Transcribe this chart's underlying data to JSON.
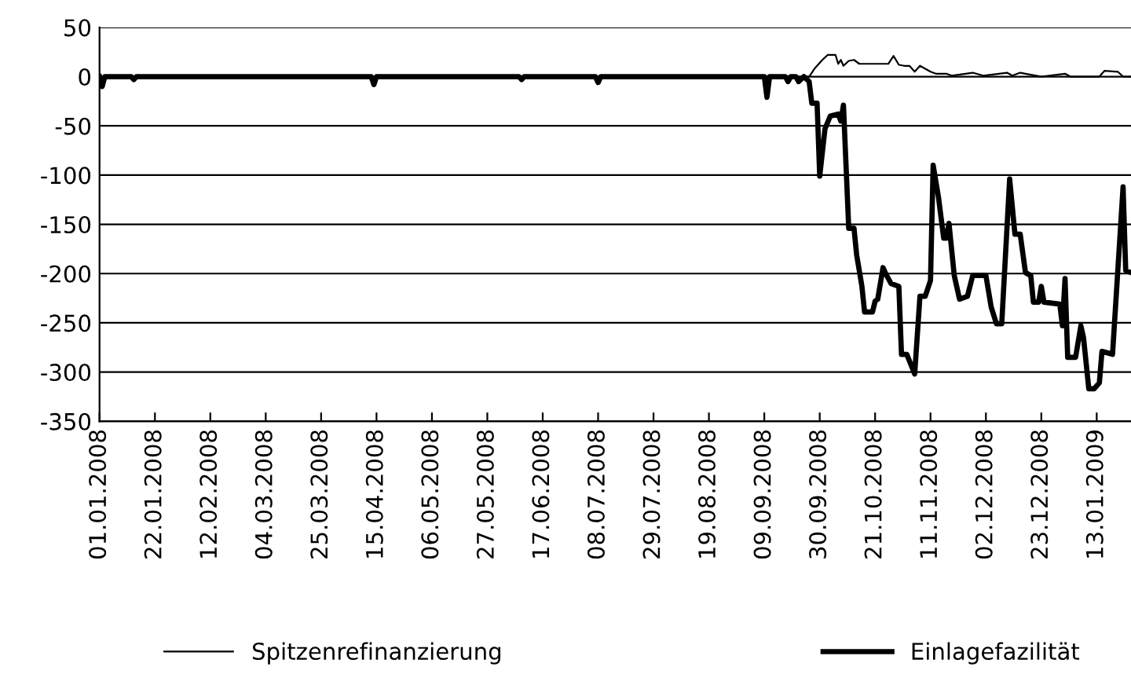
{
  "chart_data": {
    "type": "line",
    "ylim": [
      -350,
      50
    ],
    "yticks": [
      -350,
      -300,
      -250,
      -200,
      -150,
      -100,
      -50,
      0,
      50
    ],
    "xlim": [
      "2008-01-01",
      "2009-01-26"
    ],
    "xticks": [
      {
        "value": "2008-01-01",
        "label": "01.01.2008"
      },
      {
        "value": "2008-01-22",
        "label": "22.01.2008"
      },
      {
        "value": "2008-02-12",
        "label": "12.02.2008"
      },
      {
        "value": "2008-03-04",
        "label": "04.03.2008"
      },
      {
        "value": "2008-03-25",
        "label": "25.03.2008"
      },
      {
        "value": "2008-04-15",
        "label": "15.04.2008"
      },
      {
        "value": "2008-05-06",
        "label": "06.05.2008"
      },
      {
        "value": "2008-05-27",
        "label": "27.05.2008"
      },
      {
        "value": "2008-06-17",
        "label": "17.06.2008"
      },
      {
        "value": "2008-07-08",
        "label": "08.07.2008"
      },
      {
        "value": "2008-07-29",
        "label": "29.07.2008"
      },
      {
        "value": "2008-08-19",
        "label": "19.08.2008"
      },
      {
        "value": "2008-09-09",
        "label": "09.09.2008"
      },
      {
        "value": "2008-09-30",
        "label": "30.09.2008"
      },
      {
        "value": "2008-10-21",
        "label": "21.10.2008"
      },
      {
        "value": "2008-11-11",
        "label": "11.11.2008"
      },
      {
        "value": "2008-12-02",
        "label": "02.12.2008"
      },
      {
        "value": "2008-12-23",
        "label": "23.12.2008"
      },
      {
        "value": "2009-01-13",
        "label": "13.01.2009"
      }
    ],
    "grid": "y",
    "legend": "bottom",
    "line_style": "solid",
    "marker": "none",
    "series": [
      {
        "name": "Spitzenrefinanzierung",
        "color": "#000000",
        "x": [
          "2008-01-01",
          "2008-09-26",
          "2008-09-28",
          "2008-10-01",
          "2008-10-03",
          "2008-10-06",
          "2008-10-07",
          "2008-10-08",
          "2008-10-09",
          "2008-10-11",
          "2008-10-13",
          "2008-10-15",
          "2008-10-26",
          "2008-10-28",
          "2008-10-30",
          "2008-11-01",
          "2008-11-03",
          "2008-11-05",
          "2008-11-07",
          "2008-11-09",
          "2008-11-11",
          "2008-11-13",
          "2008-11-17",
          "2008-11-19",
          "2008-11-27",
          "2008-12-01",
          "2008-12-10",
          "2008-12-12",
          "2008-12-15",
          "2008-12-19",
          "2008-12-23",
          "2009-01-01",
          "2009-01-03",
          "2009-01-14",
          "2009-01-16",
          "2009-01-21",
          "2009-01-23",
          "2009-01-26"
        ],
        "values": [
          0,
          0,
          8,
          17,
          22,
          22,
          13,
          17,
          11,
          16,
          17,
          13,
          13,
          21,
          12,
          11,
          11,
          5,
          11,
          8,
          5,
          3,
          3,
          1,
          4,
          1,
          4,
          1,
          4,
          2,
          0,
          3,
          0,
          0,
          6,
          5,
          0,
          0
        ]
      },
      {
        "name": "Einlagefazilität",
        "color": "#000000",
        "x": [
          "2008-01-01",
          "2008-01-02",
          "2008-01-03",
          "2008-01-13",
          "2008-01-14",
          "2008-01-15",
          "2008-04-13",
          "2008-04-14",
          "2008-04-15",
          "2008-06-08",
          "2008-06-09",
          "2008-06-10",
          "2008-07-07",
          "2008-07-08",
          "2008-07-09",
          "2008-09-09",
          "2008-09-10",
          "2008-09-11",
          "2008-09-17",
          "2008-09-18",
          "2008-09-19",
          "2008-09-21",
          "2008-09-22",
          "2008-09-24",
          "2008-09-26",
          "2008-09-27",
          "2008-09-29",
          "2008-09-30",
          "2008-10-02",
          "2008-10-04",
          "2008-10-07",
          "2008-10-08",
          "2008-10-09",
          "2008-10-11",
          "2008-10-13",
          "2008-10-14",
          "2008-10-16",
          "2008-10-17",
          "2008-10-20",
          "2008-10-21",
          "2008-10-22",
          "2008-10-24",
          "2008-10-25",
          "2008-10-27",
          "2008-10-30",
          "2008-10-31",
          "2008-11-02",
          "2008-11-05",
          "2008-11-07",
          "2008-11-09",
          "2008-11-11",
          "2008-11-12",
          "2008-11-14",
          "2008-11-16",
          "2008-11-17",
          "2008-11-18",
          "2008-11-20",
          "2008-11-22",
          "2008-11-25",
          "2008-11-27",
          "2008-12-02",
          "2008-12-04",
          "2008-12-06",
          "2008-12-08",
          "2008-12-11",
          "2008-12-13",
          "2008-12-15",
          "2008-12-17",
          "2008-12-19",
          "2008-12-20",
          "2008-12-22",
          "2008-12-23",
          "2008-12-24",
          "2008-12-30",
          "2008-12-31",
          "2009-01-01",
          "2009-01-02",
          "2009-01-05",
          "2009-01-07",
          "2009-01-08",
          "2009-01-10",
          "2009-01-12",
          "2009-01-14",
          "2009-01-15",
          "2009-01-19",
          "2009-01-23",
          "2009-01-24",
          "2009-01-26"
        ],
        "values": [
          0,
          -10,
          0,
          0,
          -3,
          0,
          0,
          -8,
          0,
          0,
          -3,
          0,
          0,
          -6,
          0,
          0,
          -21,
          0,
          0,
          -5,
          0,
          0,
          -5,
          0,
          -5,
          -27,
          -27,
          -101,
          -53,
          -40,
          -38,
          -45,
          -29,
          -154,
          -154,
          -181,
          -213,
          -239,
          -239,
          -228,
          -226,
          -194,
          -200,
          -210,
          -213,
          -282,
          -282,
          -302,
          -223,
          -223,
          -207,
          -90,
          -122,
          -164,
          -164,
          -149,
          -202,
          -226,
          -223,
          -202,
          -202,
          -234,
          -251,
          -251,
          -104,
          -160,
          -160,
          -199,
          -202,
          -229,
          -229,
          -213,
          -229,
          -231,
          -253,
          -205,
          -285,
          -285,
          -253,
          -265,
          -317,
          -317,
          -311,
          -279,
          -282,
          -112,
          -197,
          -199
        ]
      }
    ]
  }
}
